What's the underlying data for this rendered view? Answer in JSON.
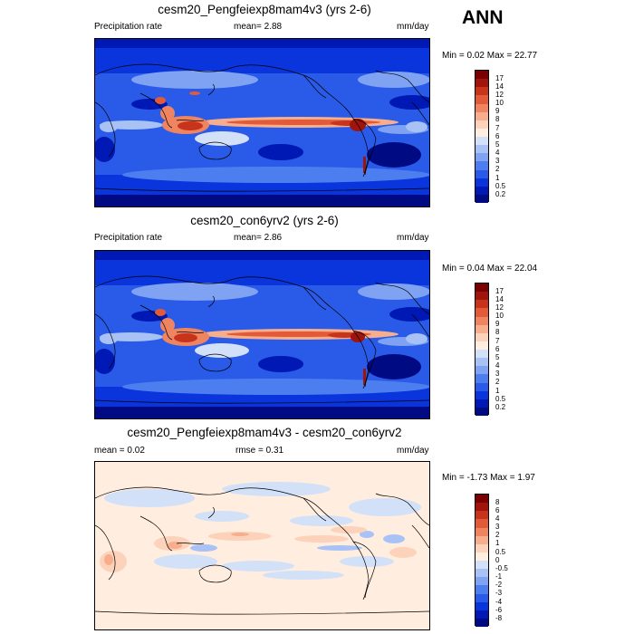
{
  "season": "ANN",
  "panels": [
    {
      "title": "cesm20_Pengfeiexp8mam4v3 (yrs 2-6)",
      "left_label": "Precipitation rate",
      "center_label": "mean=   2.88",
      "units": "mm/day",
      "minmax": "Min =   0.02 Max =   22.77",
      "levels": [
        "17",
        "14",
        "12",
        "10",
        "9",
        "8",
        "7",
        "6",
        "5",
        "4",
        "3",
        "2",
        "1",
        "0.5",
        "0.2"
      ]
    },
    {
      "title": "cesm20_con6yrv2 (yrs 2-6)",
      "left_label": "Precipitation rate",
      "center_label": "mean=   2.86",
      "units": "mm/day",
      "minmax": "Min =   0.04 Max =   22.04",
      "levels": [
        "17",
        "14",
        "12",
        "10",
        "9",
        "8",
        "7",
        "6",
        "5",
        "4",
        "3",
        "2",
        "1",
        "0.5",
        "0.2"
      ]
    },
    {
      "title": "cesm20_Pengfeiexp8mam4v3 - cesm20_con6yrv2",
      "left_label": "mean =    0.02",
      "center_label": "rmse =    0.31",
      "units": "mm/day",
      "minmax": "Min =  -1.73 Max =   1.97",
      "levels": [
        "8",
        "6",
        "4",
        "3",
        "2",
        "1",
        "0.5",
        "0",
        "-0.5",
        "-1",
        "-2",
        "-3",
        "-4",
        "-6",
        "-8"
      ]
    }
  ],
  "colors": {
    "precip_scale": [
      "#000a82",
      "#0018b4",
      "#0a34dc",
      "#2a5ae8",
      "#4d7ef0",
      "#7fa2f2",
      "#a9c2f6",
      "#d2e0f8",
      "#ffeee0",
      "#fcd2ba",
      "#f7ae8c",
      "#ef8460",
      "#e25a38",
      "#c8331c",
      "#a0140c",
      "#7a0000"
    ],
    "diff_scale": [
      "#000a82",
      "#0018b4",
      "#0a34dc",
      "#2a5ae8",
      "#4d7ef0",
      "#7fa2f2",
      "#a9c2f6",
      "#d2e0f8",
      "#ffeee0",
      "#fcd2ba",
      "#f7ae8c",
      "#ef8460",
      "#e25a38",
      "#c8331c",
      "#a0140c",
      "#7a0000"
    ]
  }
}
